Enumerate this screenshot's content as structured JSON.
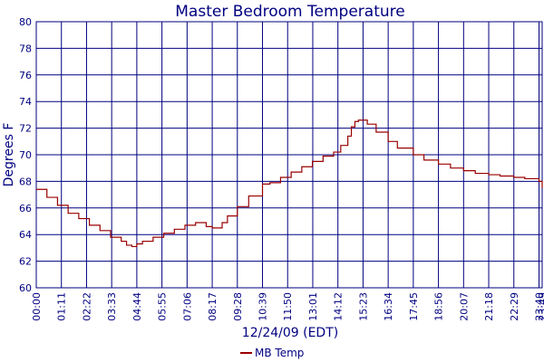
{
  "chart_data": {
    "type": "line",
    "title": "Master Bedroom Temperature",
    "xlabel": "12/24/09 (EDT)",
    "ylabel": "Degrees F",
    "ylim": [
      60,
      80
    ],
    "yticks": [
      60,
      62,
      64,
      66,
      68,
      70,
      72,
      74,
      76,
      78,
      80
    ],
    "xlim": [
      "00:00",
      "23:49"
    ],
    "xticks": [
      "00:00",
      "01:11",
      "02:22",
      "03:33",
      "04:44",
      "05:55",
      "07:06",
      "08:17",
      "09:28",
      "10:39",
      "11:50",
      "13:01",
      "14:12",
      "15:23",
      "16:34",
      "17:45",
      "18:56",
      "20:07",
      "21:18",
      "22:29",
      "23:40",
      "23:49"
    ],
    "grid": true,
    "legend_position": "bottom-center",
    "colors": {
      "series": "#990000",
      "grid": "#000080",
      "text": "#000080"
    },
    "series": [
      {
        "name": "MB Temp",
        "step": true,
        "x": [
          "00:00",
          "00:30",
          "01:00",
          "01:30",
          "02:00",
          "02:30",
          "03:00",
          "03:30",
          "04:00",
          "04:15",
          "04:30",
          "04:44",
          "05:00",
          "05:30",
          "06:00",
          "06:30",
          "07:00",
          "07:30",
          "08:00",
          "08:17",
          "08:45",
          "09:00",
          "09:28",
          "10:00",
          "10:39",
          "11:00",
          "11:30",
          "12:00",
          "12:30",
          "13:00",
          "13:30",
          "14:00",
          "14:20",
          "14:40",
          "14:50",
          "15:00",
          "15:10",
          "15:23",
          "15:35",
          "16:00",
          "16:34",
          "17:00",
          "17:45",
          "18:15",
          "18:56",
          "19:30",
          "20:07",
          "20:40",
          "21:18",
          "21:50",
          "22:29",
          "23:00",
          "23:40",
          "23:49"
        ],
        "y": [
          67.4,
          66.8,
          66.2,
          65.6,
          65.2,
          64.7,
          64.3,
          63.8,
          63.5,
          63.2,
          63.1,
          63.3,
          63.5,
          63.8,
          64.1,
          64.4,
          64.7,
          64.9,
          64.6,
          64.5,
          64.9,
          65.4,
          66.1,
          66.9,
          67.8,
          67.9,
          68.3,
          68.7,
          69.1,
          69.5,
          69.9,
          70.2,
          70.7,
          71.4,
          72.1,
          72.5,
          72.6,
          72.6,
          72.3,
          71.7,
          71.0,
          70.5,
          70.0,
          69.6,
          69.3,
          69.0,
          68.8,
          68.6,
          68.5,
          68.4,
          68.3,
          68.2,
          68.0,
          67.5
        ]
      }
    ]
  }
}
